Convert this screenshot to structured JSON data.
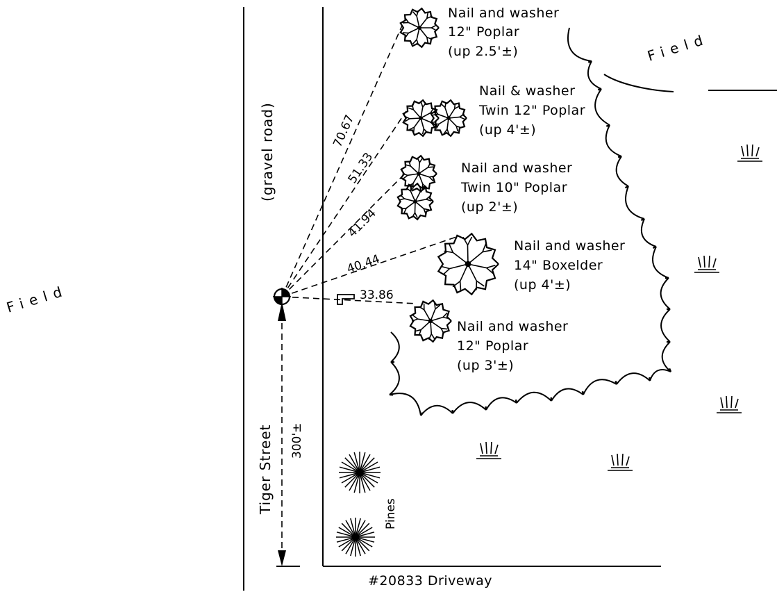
{
  "labels": {
    "field_left": "Field",
    "field_right": "Field",
    "gravel_road": "(gravel   road)",
    "tiger_street": "Tiger Street",
    "driveway": "#20833 Driveway",
    "pines": "Pines",
    "distance_300": "300'±"
  },
  "trees": [
    {
      "lines": [
        "Nail and washer",
        "12\" Poplar",
        "(up 2.5'±)"
      ]
    },
    {
      "lines": [
        "Nail & washer",
        "Twin 12\" Poplar",
        "(up 4'±)"
      ]
    },
    {
      "lines": [
        "Nail and washer",
        "Twin 10\" Poplar",
        "(up 2'±)"
      ]
    },
    {
      "lines": [
        "Nail and washer",
        "14\" Boxelder",
        "(up 4'±)"
      ]
    },
    {
      "lines": [
        "Nail and washer",
        "12\" Poplar",
        "(up 3'±)"
      ]
    }
  ],
  "distances": [
    "70.67",
    "51.33",
    "41.94",
    "40.44",
    "33.86"
  ],
  "colors": {
    "ink": "#000000",
    "paper": "#ffffff"
  },
  "symbols": [
    "control-point-icon",
    "tree-icon",
    "pine-icon",
    "marsh-grass-icon",
    "direction-arrow-icon"
  ]
}
